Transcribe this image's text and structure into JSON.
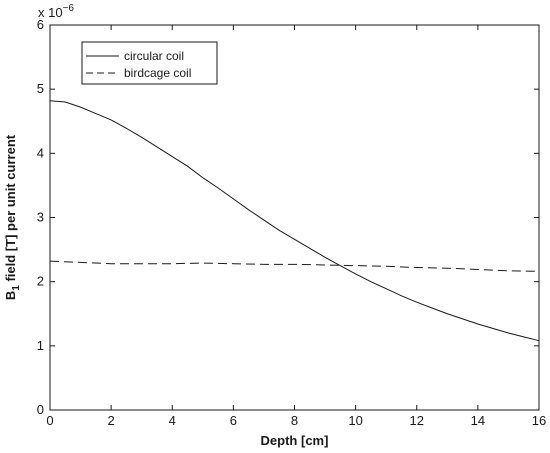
{
  "chart_data": {
    "type": "line",
    "title": "",
    "xlabel": "Depth [cm]",
    "ylabel": {
      "prefix": "B",
      "subscript": "1",
      "suffix": " field [T] per unit current"
    },
    "y_multiplier": {
      "base": "x 10",
      "exponent": "−6"
    },
    "xlim": [
      0,
      16
    ],
    "ylim": [
      0,
      6
    ],
    "x_ticks": [
      0,
      2,
      4,
      6,
      8,
      10,
      12,
      14,
      16
    ],
    "y_ticks": [
      0,
      1,
      2,
      3,
      4,
      5,
      6
    ],
    "grid": false,
    "legend_position": "top-left",
    "series": [
      {
        "name": "circular coil",
        "style": "solid",
        "color": "#1a1a1a",
        "x": [
          0,
          0.5,
          1,
          1.5,
          2,
          2.5,
          3,
          3.5,
          4,
          4.5,
          5,
          5.5,
          6,
          6.5,
          7,
          7.5,
          8,
          8.5,
          9,
          9.5,
          10,
          10.5,
          11,
          11.5,
          12,
          12.5,
          13,
          13.5,
          14,
          14.5,
          15,
          15.5,
          16
        ],
        "y": [
          4.82,
          4.8,
          4.72,
          4.62,
          4.52,
          4.39,
          4.25,
          4.1,
          3.95,
          3.8,
          3.62,
          3.46,
          3.29,
          3.12,
          2.96,
          2.8,
          2.66,
          2.52,
          2.38,
          2.25,
          2.12,
          2.0,
          1.89,
          1.78,
          1.68,
          1.59,
          1.5,
          1.42,
          1.34,
          1.27,
          1.2,
          1.14,
          1.08
        ]
      },
      {
        "name": "birdcage coil",
        "style": "dashed",
        "color": "#1a1a1a",
        "x": [
          0,
          1,
          2,
          3,
          4,
          5,
          6,
          7,
          8,
          9,
          10,
          11,
          12,
          13,
          14,
          15,
          16
        ],
        "y": [
          2.32,
          2.3,
          2.28,
          2.28,
          2.28,
          2.29,
          2.28,
          2.27,
          2.27,
          2.26,
          2.25,
          2.24,
          2.22,
          2.21,
          2.19,
          2.17,
          2.16
        ]
      }
    ]
  }
}
